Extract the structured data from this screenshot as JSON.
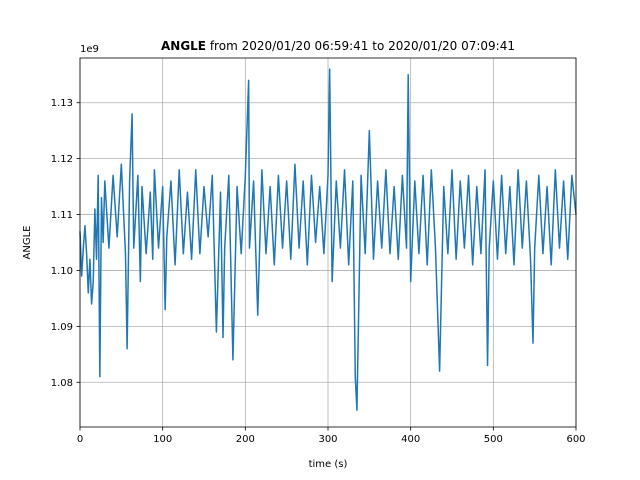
{
  "chart_data": {
    "type": "line",
    "title_bold": "ANGLE",
    "title_rest": " from 2020/01/20 06:59:41 to 2020/01/20 07:09:41",
    "xlabel": "time (s)",
    "ylabel": "ANGLE",
    "offset_label": "1e9",
    "xlim": [
      0,
      600
    ],
    "ylim": [
      1.072,
      1.138
    ],
    "xticks": [
      0,
      100,
      200,
      300,
      400,
      500,
      600
    ],
    "xtick_labels": [
      "0",
      "100",
      "200",
      "300",
      "400",
      "500",
      "600"
    ],
    "yticks": [
      1.08,
      1.09,
      1.1,
      1.11,
      1.12,
      1.13
    ],
    "ytick_labels": [
      "1.08",
      "1.09",
      "1.10",
      "1.11",
      "1.12",
      "1.13"
    ],
    "grid": true,
    "line_color": "#1f77b4",
    "series": [
      {
        "x": [
          0,
          2,
          4,
          6,
          8,
          10,
          12,
          14,
          16,
          18,
          20,
          22,
          24,
          26,
          28,
          30,
          35,
          40,
          45,
          50,
          55,
          57,
          60,
          63,
          65,
          70,
          73,
          75,
          80,
          85,
          88,
          90,
          95,
          100,
          103,
          105,
          110,
          115,
          120,
          125,
          130,
          135,
          140,
          145,
          150,
          155,
          160,
          165,
          170,
          173,
          175,
          180,
          185,
          190,
          195,
          200,
          204,
          205,
          210,
          215,
          220,
          225,
          230,
          235,
          240,
          245,
          250,
          255,
          260,
          265,
          270,
          275,
          280,
          285,
          290,
          295,
          300,
          302,
          305,
          310,
          315,
          320,
          325,
          330,
          333,
          335,
          340,
          345,
          350,
          355,
          360,
          365,
          370,
          375,
          380,
          385,
          390,
          395,
          397,
          400,
          405,
          410,
          415,
          420,
          425,
          430,
          435,
          440,
          445,
          450,
          455,
          460,
          465,
          470,
          475,
          480,
          485,
          490,
          493,
          495,
          500,
          505,
          510,
          515,
          520,
          525,
          530,
          535,
          540,
          545,
          548,
          550,
          555,
          560,
          565,
          570,
          575,
          580,
          585,
          590,
          595,
          600
        ],
        "y": [
          1.107,
          1.099,
          1.104,
          1.108,
          1.103,
          1.096,
          1.102,
          1.094,
          1.098,
          1.111,
          1.102,
          1.117,
          1.081,
          1.113,
          1.105,
          1.116,
          1.104,
          1.117,
          1.106,
          1.119,
          1.103,
          1.086,
          1.116,
          1.128,
          1.104,
          1.117,
          1.098,
          1.115,
          1.103,
          1.114,
          1.102,
          1.118,
          1.104,
          1.115,
          1.093,
          1.106,
          1.116,
          1.101,
          1.118,
          1.103,
          1.114,
          1.102,
          1.118,
          1.103,
          1.115,
          1.106,
          1.117,
          1.089,
          1.114,
          1.088,
          1.104,
          1.117,
          1.084,
          1.115,
          1.103,
          1.117,
          1.134,
          1.104,
          1.116,
          1.092,
          1.118,
          1.103,
          1.115,
          1.101,
          1.117,
          1.104,
          1.116,
          1.102,
          1.119,
          1.104,
          1.116,
          1.101,
          1.117,
          1.105,
          1.115,
          1.103,
          1.117,
          1.136,
          1.098,
          1.116,
          1.104,
          1.118,
          1.101,
          1.116,
          1.081,
          1.075,
          1.117,
          1.103,
          1.125,
          1.102,
          1.116,
          1.104,
          1.118,
          1.103,
          1.115,
          1.102,
          1.117,
          1.104,
          1.135,
          1.098,
          1.116,
          1.103,
          1.117,
          1.101,
          1.118,
          1.104,
          1.082,
          1.115,
          1.103,
          1.118,
          1.102,
          1.116,
          1.104,
          1.117,
          1.101,
          1.115,
          1.103,
          1.118,
          1.083,
          1.104,
          1.116,
          1.102,
          1.117,
          1.103,
          1.115,
          1.101,
          1.118,
          1.104,
          1.116,
          1.102,
          1.087,
          1.104,
          1.117,
          1.103,
          1.115,
          1.101,
          1.118,
          1.104,
          1.116,
          1.102,
          1.117,
          1.11
        ]
      }
    ]
  }
}
